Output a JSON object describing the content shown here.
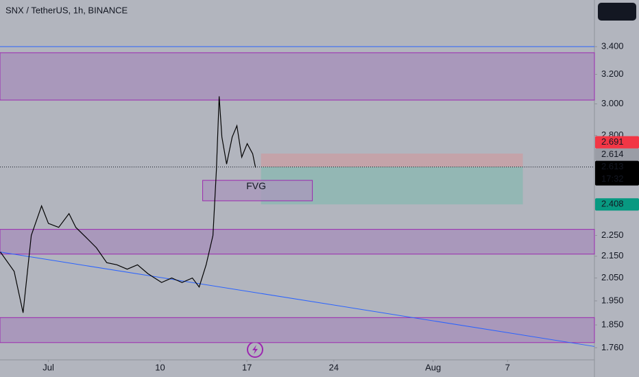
{
  "chart_data": {
    "type": "line",
    "title": "SNX / TetherUS, 1h, BINANCE",
    "log_scale": true,
    "x": [
      -2.87,
      -1.76,
      -1.04,
      -0.38,
      0.45,
      1.0,
      1.83,
      2.66,
      3.21,
      4.04,
      4.87,
      5.7,
      6.52,
      7.35,
      8.18,
      9.01,
      10.12,
      10.94,
      11.77,
      12.6,
      13.15,
      13.71,
      14.26,
      14.54,
      14.76,
      14.98,
      15.36,
      15.81,
      16.19,
      16.58,
      17.02,
      17.46,
      17.69
    ],
    "values": [
      2.17,
      2.08,
      1.9,
      2.25,
      2.4,
      2.31,
      2.29,
      2.36,
      2.29,
      2.24,
      2.19,
      2.12,
      2.11,
      2.09,
      2.11,
      2.07,
      2.03,
      2.05,
      2.03,
      2.05,
      2.01,
      2.11,
      2.25,
      2.6,
      3.05,
      2.79,
      2.63,
      2.79,
      2.86,
      2.67,
      2.75,
      2.69,
      2.61
    ],
    "color": "#000000",
    "xlim": [
      -2.9,
      45
    ],
    "ylim": [
      1.714,
      3.765
    ],
    "xticks": [
      {
        "value": 1,
        "label": "Jul"
      },
      10,
      17,
      24,
      {
        "value": 32,
        "label": "Aug"
      },
      {
        "value": 38,
        "label": "7"
      }
    ],
    "yticks": [
      {
        "value": 3.4,
        "label": "3.400"
      },
      {
        "value": 3.2,
        "label": "3.200"
      },
      {
        "value": 3.0,
        "label": "3.000"
      },
      {
        "value": 2.8,
        "label": "2.800"
      },
      {
        "value": 2.25,
        "label": "2.250"
      },
      {
        "value": 2.15,
        "label": "2.150"
      },
      {
        "value": 2.05,
        "label": "2.050"
      },
      {
        "value": 1.95,
        "label": "1.950"
      },
      {
        "value": 1.85,
        "label": "1.850"
      },
      {
        "value": 1.76,
        "label": "1.760"
      }
    ],
    "zones": [
      [
        3.025,
        3.355
      ],
      [
        2.16,
        2.28
      ],
      [
        1.78,
        1.88
      ]
    ],
    "zone_color": "#a998bb",
    "hline": 3.4,
    "trendline": {
      "x": [
        -2.9,
        45
      ],
      "values": [
        2.17,
        1.765
      ]
    },
    "fvg": {
      "label": "FVG",
      "xlim": [
        13.43,
        22.27
      ],
      "ylim": [
        2.427,
        2.538
      ]
    },
    "position": {
      "xlim": [
        18.13,
        39.23
      ],
      "entry": 2.614,
      "stop": 2.691,
      "target": 2.408
    },
    "current_price": 2.613,
    "price_labels": [
      {
        "value": 2.691,
        "color": "#f23645",
        "text_color": "#ffffff"
      },
      {
        "value": 2.614,
        "color": "#9a9da6",
        "text_color": "#131722"
      },
      {
        "value": 2.613,
        "color": "#000000",
        "text_color": "#ffffff",
        "countdown": "17:32"
      },
      {
        "value": 2.408,
        "color": "#089981",
        "text_color": "#ffffff"
      }
    ]
  }
}
